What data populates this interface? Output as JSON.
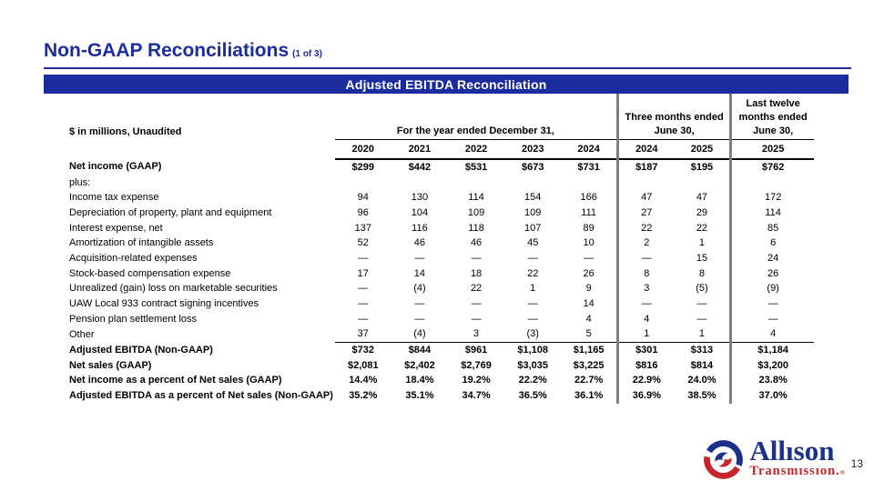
{
  "page": {
    "title": "Non-GAAP Reconciliations",
    "title_suffix": "(1 of 3)",
    "page_number": "13"
  },
  "colors": {
    "accent_blue": "#1C2D9E",
    "banner_blue": "#1B2D9E",
    "divider_gray": "#7f7f7f",
    "logo_blue": "#1B3189",
    "logo_red": "#C9232B"
  },
  "table": {
    "banner": "Adjusted EBITDA Reconciliation",
    "units_note": "$ in millions, Unaudited",
    "col_groups": [
      {
        "lines": [
          "For the year ended December 31,"
        ],
        "span": 5
      },
      {
        "lines": [
          "Three months ended",
          "June 30,"
        ],
        "span": 2
      },
      {
        "lines": [
          "Last twelve",
          "months ended",
          "June 30,"
        ],
        "span": 1
      }
    ],
    "years": [
      "2020",
      "2021",
      "2022",
      "2023",
      "2024",
      "2024",
      "2025",
      "2025"
    ],
    "rows": [
      {
        "label": "Net income (GAAP)",
        "bold": true,
        "values": [
          "$299",
          "$442",
          "$531",
          "$673",
          "$731",
          "$187",
          "$195",
          "$762"
        ]
      },
      {
        "label": "plus:",
        "bold": false,
        "values": [
          "",
          "",
          "",
          "",
          "",
          "",
          "",
          ""
        ]
      },
      {
        "label": "Income tax expense",
        "bold": false,
        "values": [
          "94",
          "130",
          "114",
          "154",
          "166",
          "47",
          "47",
          "172"
        ]
      },
      {
        "label": "Depreciation of property, plant and equipment",
        "bold": false,
        "values": [
          "96",
          "104",
          "109",
          "109",
          "111",
          "27",
          "29",
          "114"
        ]
      },
      {
        "label": "Interest expense, net",
        "bold": false,
        "values": [
          "137",
          "116",
          "118",
          "107",
          "89",
          "22",
          "22",
          "85"
        ]
      },
      {
        "label": "Amortization of intangible assets",
        "bold": false,
        "values": [
          "52",
          "46",
          "46",
          "45",
          "10",
          "2",
          "1",
          "6"
        ]
      },
      {
        "label": "Acquisition-related expenses",
        "bold": false,
        "values": [
          "—",
          "—",
          "—",
          "—",
          "—",
          "—",
          "15",
          "24"
        ]
      },
      {
        "label": "Stock-based compensation expense",
        "bold": false,
        "values": [
          "17",
          "14",
          "18",
          "22",
          "26",
          "8",
          "8",
          "26"
        ]
      },
      {
        "label": "Unrealized (gain) loss on marketable securities",
        "bold": false,
        "values": [
          "—",
          "(4)",
          "22",
          "1",
          "9",
          "3",
          "(5)",
          "(9)"
        ]
      },
      {
        "label": "UAW Local 933 contract signing incentives",
        "bold": false,
        "values": [
          "—",
          "—",
          "—",
          "—",
          "14",
          "—",
          "—",
          "—"
        ]
      },
      {
        "label": "Pension plan settlement loss",
        "bold": false,
        "values": [
          "—",
          "—",
          "—",
          "—",
          "4",
          "4",
          "—",
          "—"
        ]
      },
      {
        "label": "Other",
        "bold": false,
        "rule_below": true,
        "values": [
          "37",
          "(4)",
          "3",
          "(3)",
          "5",
          "1",
          "1",
          "4"
        ]
      },
      {
        "label": "Adjusted EBITDA (Non-GAAP)",
        "bold": true,
        "values": [
          "$732",
          "$844",
          "$961",
          "$1,108",
          "$1,165",
          "$301",
          "$313",
          "$1,184"
        ]
      },
      {
        "label": "Net sales (GAAP)",
        "bold": true,
        "values": [
          "$2,081",
          "$2,402",
          "$2,769",
          "$3,035",
          "$3,225",
          "$816",
          "$814",
          "$3,200"
        ]
      },
      {
        "label": "Net income as a percent of Net sales (GAAP)",
        "bold": true,
        "values": [
          "14.4%",
          "18.4%",
          "19.2%",
          "22.2%",
          "22.7%",
          "22.9%",
          "24.0%",
          "23.8%"
        ]
      },
      {
        "label": "Adjusted EBITDA as a percent of Net sales (Non-GAAP)",
        "bold": true,
        "values": [
          "35.2%",
          "35.1%",
          "34.7%",
          "36.5%",
          "36.1%",
          "36.9%",
          "38.5%",
          "37.0%"
        ]
      }
    ]
  },
  "logo": {
    "brand": "Allıson",
    "sub_brand": "Transmıssıon.",
    "registered_mark": "®"
  }
}
